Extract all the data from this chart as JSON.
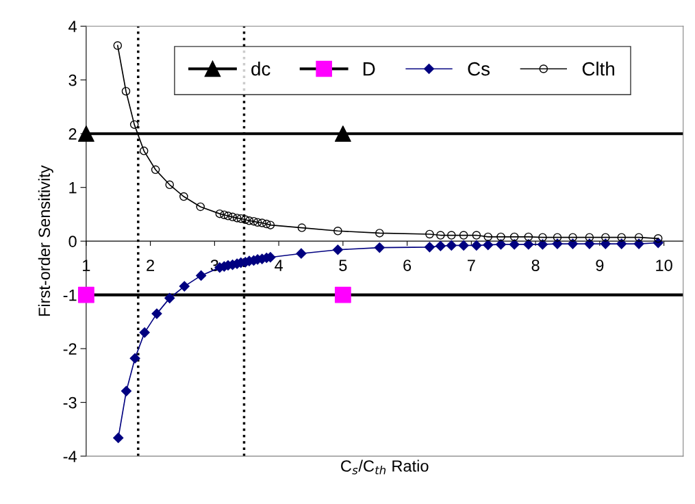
{
  "chart_data": {
    "type": "line",
    "xlabel": "C$_{s}$/C$_{th}$ Ratio",
    "ylabel": "First-order Sensitivity",
    "xlim": [
      1,
      10.3
    ],
    "xticks": [
      1,
      2,
      3,
      4,
      5,
      6,
      7,
      8,
      9,
      10
    ],
    "ylim": [
      -4,
      4
    ],
    "yticks": [
      -4,
      -3,
      -2,
      -1,
      0,
      1,
      2,
      3,
      4
    ],
    "grid": false,
    "legend": "top",
    "series": [
      {
        "name": "dc",
        "type": "scatter",
        "marker": "triangle",
        "color": "#000000",
        "x": [
          1,
          5
        ],
        "values": [
          2,
          2
        ]
      },
      {
        "name": "D",
        "type": "scatter",
        "marker": "square",
        "color": "#ff00ff",
        "x": [
          1,
          5
        ],
        "values": [
          -1,
          -1
        ]
      },
      {
        "name": "Cs",
        "marker": "diamond",
        "color": "#000080",
        "x": [
          1.5,
          1.625,
          1.76,
          1.91,
          2.1,
          2.3,
          2.53,
          2.79,
          3.08,
          3.15,
          3.21,
          3.28,
          3.35,
          3.41,
          3.48,
          3.54,
          3.61,
          3.67,
          3.74,
          3.81,
          3.87,
          4.35,
          4.92,
          5.57,
          6.35,
          6.52,
          6.69,
          6.88,
          7.08,
          7.26,
          7.46,
          7.67,
          7.89,
          8.11,
          8.34,
          8.58,
          8.84,
          9.09,
          9.34,
          9.61,
          9.91
        ],
        "values": [
          -3.66,
          -2.79,
          -2.18,
          -1.7,
          -1.35,
          -1.06,
          -0.84,
          -0.64,
          -0.49,
          -0.47,
          -0.45,
          -0.44,
          -0.42,
          -0.4,
          -0.39,
          -0.37,
          -0.36,
          -0.34,
          -0.33,
          -0.31,
          -0.3,
          -0.23,
          -0.16,
          -0.12,
          -0.11,
          -0.09,
          -0.08,
          -0.08,
          -0.08,
          -0.07,
          -0.06,
          -0.06,
          -0.06,
          -0.06,
          -0.05,
          -0.05,
          -0.05,
          -0.05,
          -0.05,
          -0.05,
          -0.03
        ]
      },
      {
        "name": "Clth",
        "marker": "circle",
        "color": "#000000",
        "x": [
          1.49,
          1.62,
          1.75,
          1.9,
          2.08,
          2.3,
          2.52,
          2.78,
          3.08,
          3.15,
          3.21,
          3.28,
          3.35,
          3.41,
          3.48,
          3.54,
          3.61,
          3.67,
          3.74,
          3.81,
          3.87,
          4.36,
          4.92,
          5.57,
          6.35,
          6.52,
          6.69,
          6.88,
          7.08,
          7.26,
          7.46,
          7.67,
          7.89,
          8.11,
          8.34,
          8.58,
          8.84,
          9.09,
          9.34,
          9.61,
          9.91
        ],
        "values": [
          3.64,
          2.79,
          2.17,
          1.68,
          1.33,
          1.05,
          0.83,
          0.64,
          0.51,
          0.49,
          0.47,
          0.45,
          0.43,
          0.42,
          0.4,
          0.38,
          0.37,
          0.35,
          0.34,
          0.32,
          0.3,
          0.25,
          0.19,
          0.15,
          0.13,
          0.11,
          0.11,
          0.11,
          0.11,
          0.08,
          0.08,
          0.08,
          0.08,
          0.07,
          0.07,
          0.07,
          0.07,
          0.07,
          0.07,
          0.07,
          0.05
        ]
      }
    ],
    "ref_lines": [
      {
        "axis": "y",
        "value": 2,
        "color": "#000000",
        "line_style": "solid"
      },
      {
        "axis": "y",
        "value": -1,
        "color": "#000000",
        "line_style": "solid"
      },
      {
        "axis": "x",
        "value": 1.81,
        "color": "#000000",
        "line_style": "dotted"
      },
      {
        "axis": "x",
        "value": 3.46,
        "color": "#000000",
        "line_style": "dotted"
      }
    ]
  }
}
